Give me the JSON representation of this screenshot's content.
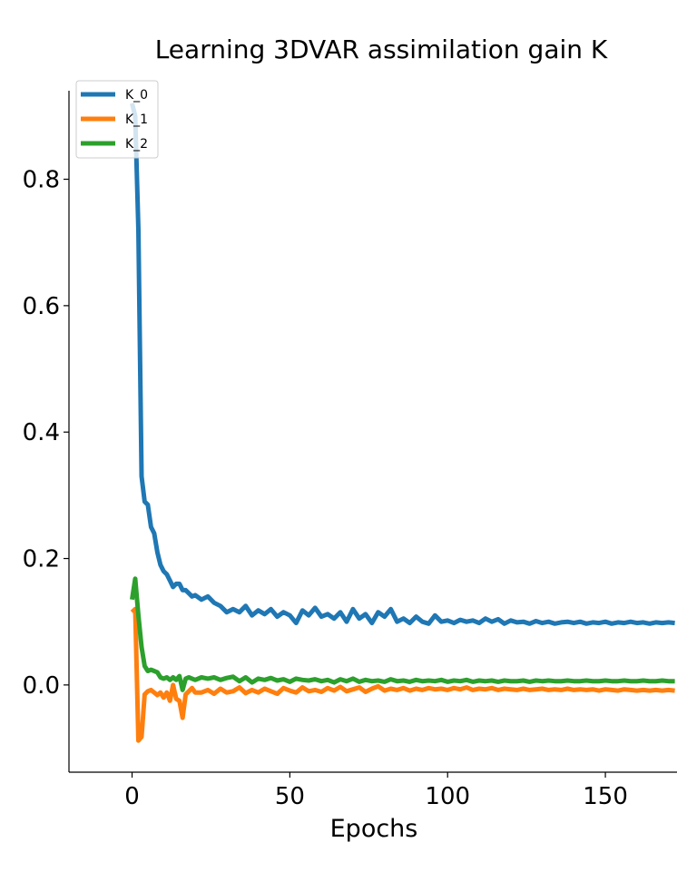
{
  "chart_data": {
    "type": "line",
    "title": "Learning 3DVAR assimilation gain K",
    "xlabel": "Epochs",
    "ylabel": "",
    "xlim": [
      -20,
      172.7
    ],
    "ylim": [
      -0.138,
      0.94
    ],
    "xticks": [
      0,
      50,
      100,
      150
    ],
    "xtick_labels": [
      "0",
      "50",
      "100",
      "150"
    ],
    "yticks": [
      0.0,
      0.2,
      0.4,
      0.6,
      0.8
    ],
    "ytick_labels": [
      "0.0",
      "0.2",
      "0.4",
      "0.6",
      "0.8"
    ],
    "grid": false,
    "legend_position": "top-left",
    "x": [
      0,
      1,
      2,
      3,
      4,
      5,
      6,
      7,
      8,
      9,
      10,
      11,
      12,
      13,
      14,
      15,
      16,
      17,
      18,
      19,
      20,
      22,
      24,
      26,
      28,
      30,
      32,
      34,
      36,
      38,
      40,
      42,
      44,
      46,
      48,
      50,
      52,
      54,
      56,
      58,
      60,
      62,
      64,
      66,
      68,
      70,
      72,
      74,
      76,
      78,
      80,
      82,
      84,
      86,
      88,
      90,
      92,
      94,
      96,
      98,
      100,
      102,
      104,
      106,
      108,
      110,
      112,
      114,
      116,
      118,
      120,
      122,
      124,
      126,
      128,
      130,
      132,
      134,
      136,
      138,
      140,
      142,
      144,
      146,
      148,
      150,
      152,
      154,
      156,
      158,
      160,
      162,
      164,
      166,
      168,
      170,
      172
    ],
    "series": [
      {
        "name": "K_0",
        "color": "#1f77b4",
        "values": [
          0.92,
          0.9,
          0.72,
          0.33,
          0.29,
          0.285,
          0.25,
          0.24,
          0.21,
          0.19,
          0.18,
          0.175,
          0.165,
          0.155,
          0.16,
          0.16,
          0.15,
          0.15,
          0.145,
          0.14,
          0.142,
          0.135,
          0.14,
          0.13,
          0.125,
          0.115,
          0.12,
          0.115,
          0.125,
          0.11,
          0.118,
          0.112,
          0.12,
          0.108,
          0.115,
          0.11,
          0.098,
          0.118,
          0.11,
          0.122,
          0.108,
          0.112,
          0.105,
          0.115,
          0.1,
          0.12,
          0.105,
          0.112,
          0.098,
          0.115,
          0.108,
          0.12,
          0.1,
          0.105,
          0.098,
          0.108,
          0.1,
          0.097,
          0.11,
          0.1,
          0.102,
          0.098,
          0.103,
          0.1,
          0.102,
          0.098,
          0.105,
          0.1,
          0.104,
          0.097,
          0.102,
          0.099,
          0.1,
          0.097,
          0.101,
          0.098,
          0.1,
          0.097,
          0.099,
          0.1,
          0.098,
          0.1,
          0.097,
          0.099,
          0.098,
          0.1,
          0.097,
          0.099,
          0.098,
          0.1,
          0.098,
          0.099,
          0.097,
          0.099,
          0.098,
          0.099,
          0.098
        ]
      },
      {
        "name": "K_1",
        "color": "#ff7f0e",
        "values": [
          0.115,
          0.12,
          -0.088,
          -0.082,
          -0.015,
          -0.01,
          -0.008,
          -0.012,
          -0.016,
          -0.012,
          -0.02,
          -0.012,
          -0.025,
          0.0,
          -0.022,
          -0.025,
          -0.052,
          -0.015,
          -0.01,
          -0.005,
          -0.012,
          -0.012,
          -0.008,
          -0.014,
          -0.006,
          -0.012,
          -0.01,
          -0.004,
          -0.013,
          -0.008,
          -0.012,
          -0.006,
          -0.01,
          -0.014,
          -0.005,
          -0.009,
          -0.012,
          -0.004,
          -0.01,
          -0.008,
          -0.011,
          -0.005,
          -0.009,
          -0.003,
          -0.01,
          -0.007,
          -0.004,
          -0.011,
          -0.006,
          -0.002,
          -0.009,
          -0.006,
          -0.008,
          -0.005,
          -0.009,
          -0.006,
          -0.008,
          -0.005,
          -0.007,
          -0.006,
          -0.008,
          -0.005,
          -0.007,
          -0.004,
          -0.008,
          -0.006,
          -0.007,
          -0.005,
          -0.008,
          -0.006,
          -0.007,
          -0.008,
          -0.006,
          -0.008,
          -0.007,
          -0.006,
          -0.008,
          -0.007,
          -0.008,
          -0.006,
          -0.008,
          -0.007,
          -0.008,
          -0.007,
          -0.009,
          -0.007,
          -0.008,
          -0.009,
          -0.007,
          -0.008,
          -0.009,
          -0.008,
          -0.009,
          -0.008,
          -0.009,
          -0.008,
          -0.009
        ]
      },
      {
        "name": "K_2",
        "color": "#2ca02c",
        "values": [
          0.135,
          0.168,
          0.11,
          0.06,
          0.03,
          0.022,
          0.024,
          0.022,
          0.02,
          0.012,
          0.01,
          0.012,
          0.008,
          0.012,
          0.008,
          0.014,
          -0.008,
          0.01,
          0.012,
          0.01,
          0.008,
          0.012,
          0.01,
          0.012,
          0.008,
          0.011,
          0.013,
          0.006,
          0.012,
          0.004,
          0.01,
          0.008,
          0.011,
          0.007,
          0.009,
          0.005,
          0.01,
          0.008,
          0.007,
          0.009,
          0.006,
          0.008,
          0.004,
          0.009,
          0.006,
          0.01,
          0.005,
          0.008,
          0.006,
          0.007,
          0.005,
          0.009,
          0.006,
          0.007,
          0.005,
          0.008,
          0.006,
          0.007,
          0.006,
          0.008,
          0.005,
          0.007,
          0.006,
          0.008,
          0.005,
          0.007,
          0.006,
          0.007,
          0.005,
          0.007,
          0.006,
          0.006,
          0.007,
          0.005,
          0.007,
          0.006,
          0.007,
          0.006,
          0.006,
          0.007,
          0.006,
          0.006,
          0.007,
          0.006,
          0.006,
          0.007,
          0.006,
          0.006,
          0.007,
          0.006,
          0.006,
          0.007,
          0.006,
          0.006,
          0.007,
          0.006,
          0.006
        ]
      }
    ]
  }
}
